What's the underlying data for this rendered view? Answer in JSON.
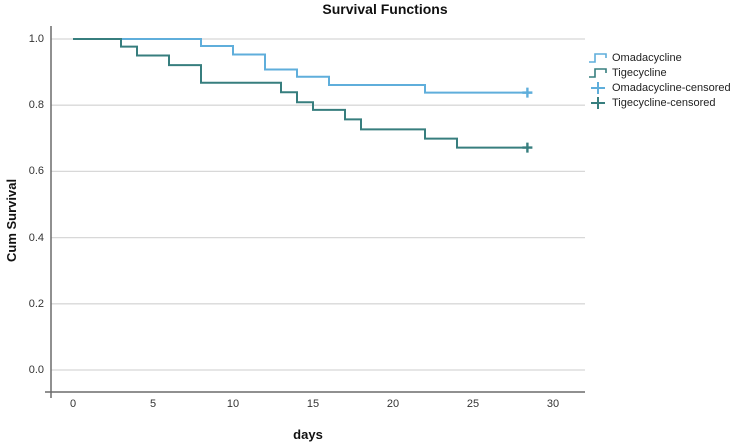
{
  "title": "Survival Functions",
  "axes": {
    "x": {
      "label": "days",
      "ticks": [
        "0",
        "5",
        "10",
        "15",
        "20",
        "25",
        "30"
      ],
      "range": [
        0,
        30
      ]
    },
    "y": {
      "label": "Cum Survival",
      "ticks": [
        "0.0",
        "0.2",
        "0.4",
        "0.6",
        "0.8",
        "1.0"
      ],
      "range": [
        0.0,
        1.0
      ]
    }
  },
  "colors": {
    "omadacycline": "#5FAEDB",
    "tigecycline": "#377E7E",
    "gridline": "#D8D8D8",
    "axis_line": "#6B6B6B",
    "background": "#FFFFFF"
  },
  "legend": {
    "items": [
      {
        "label": "Omadacycline",
        "symbol": "step-line",
        "color": "#5FAEDB"
      },
      {
        "label": "Tigecycline",
        "symbol": "step-line",
        "color": "#377E7E"
      },
      {
        "label": "Omadacycline-censored",
        "symbol": "plus",
        "color": "#5FAEDB"
      },
      {
        "label": "Tigecycline-censored",
        "symbol": "plus",
        "color": "#377E7E"
      }
    ]
  },
  "chart_data": {
    "type": "line",
    "subtype": "kaplan-meier-step",
    "title": "Survival Functions",
    "xlabel": "days",
    "ylabel": "Cum Survival",
    "xlim": [
      0,
      30
    ],
    "ylim": [
      0.0,
      1.0
    ],
    "grid": "horizontal",
    "legend_position": "right",
    "series": [
      {
        "name": "Omadacycline",
        "color": "#5FAEDB",
        "steps": [
          {
            "t": 0,
            "s": 1.0
          },
          {
            "t": 8,
            "s": 0.979
          },
          {
            "t": 10,
            "s": 0.953
          },
          {
            "t": 12,
            "s": 0.908
          },
          {
            "t": 14,
            "s": 0.886
          },
          {
            "t": 16,
            "s": 0.861
          },
          {
            "t": 22,
            "s": 0.838
          }
        ],
        "end_t": 28.5,
        "censored": [
          {
            "t": 28.4,
            "s": 0.838
          }
        ]
      },
      {
        "name": "Tigecycline",
        "color": "#377E7E",
        "steps": [
          {
            "t": 0,
            "s": 1.0
          },
          {
            "t": 3,
            "s": 0.977
          },
          {
            "t": 4,
            "s": 0.95
          },
          {
            "t": 6,
            "s": 0.921
          },
          {
            "t": 8,
            "s": 0.868
          },
          {
            "t": 13,
            "s": 0.839
          },
          {
            "t": 14,
            "s": 0.809
          },
          {
            "t": 15,
            "s": 0.786
          },
          {
            "t": 17,
            "s": 0.757
          },
          {
            "t": 18,
            "s": 0.727
          },
          {
            "t": 22,
            "s": 0.699
          },
          {
            "t": 24,
            "s": 0.672
          }
        ],
        "end_t": 28.5,
        "censored": [
          {
            "t": 28.4,
            "s": 0.672
          }
        ]
      }
    ]
  }
}
